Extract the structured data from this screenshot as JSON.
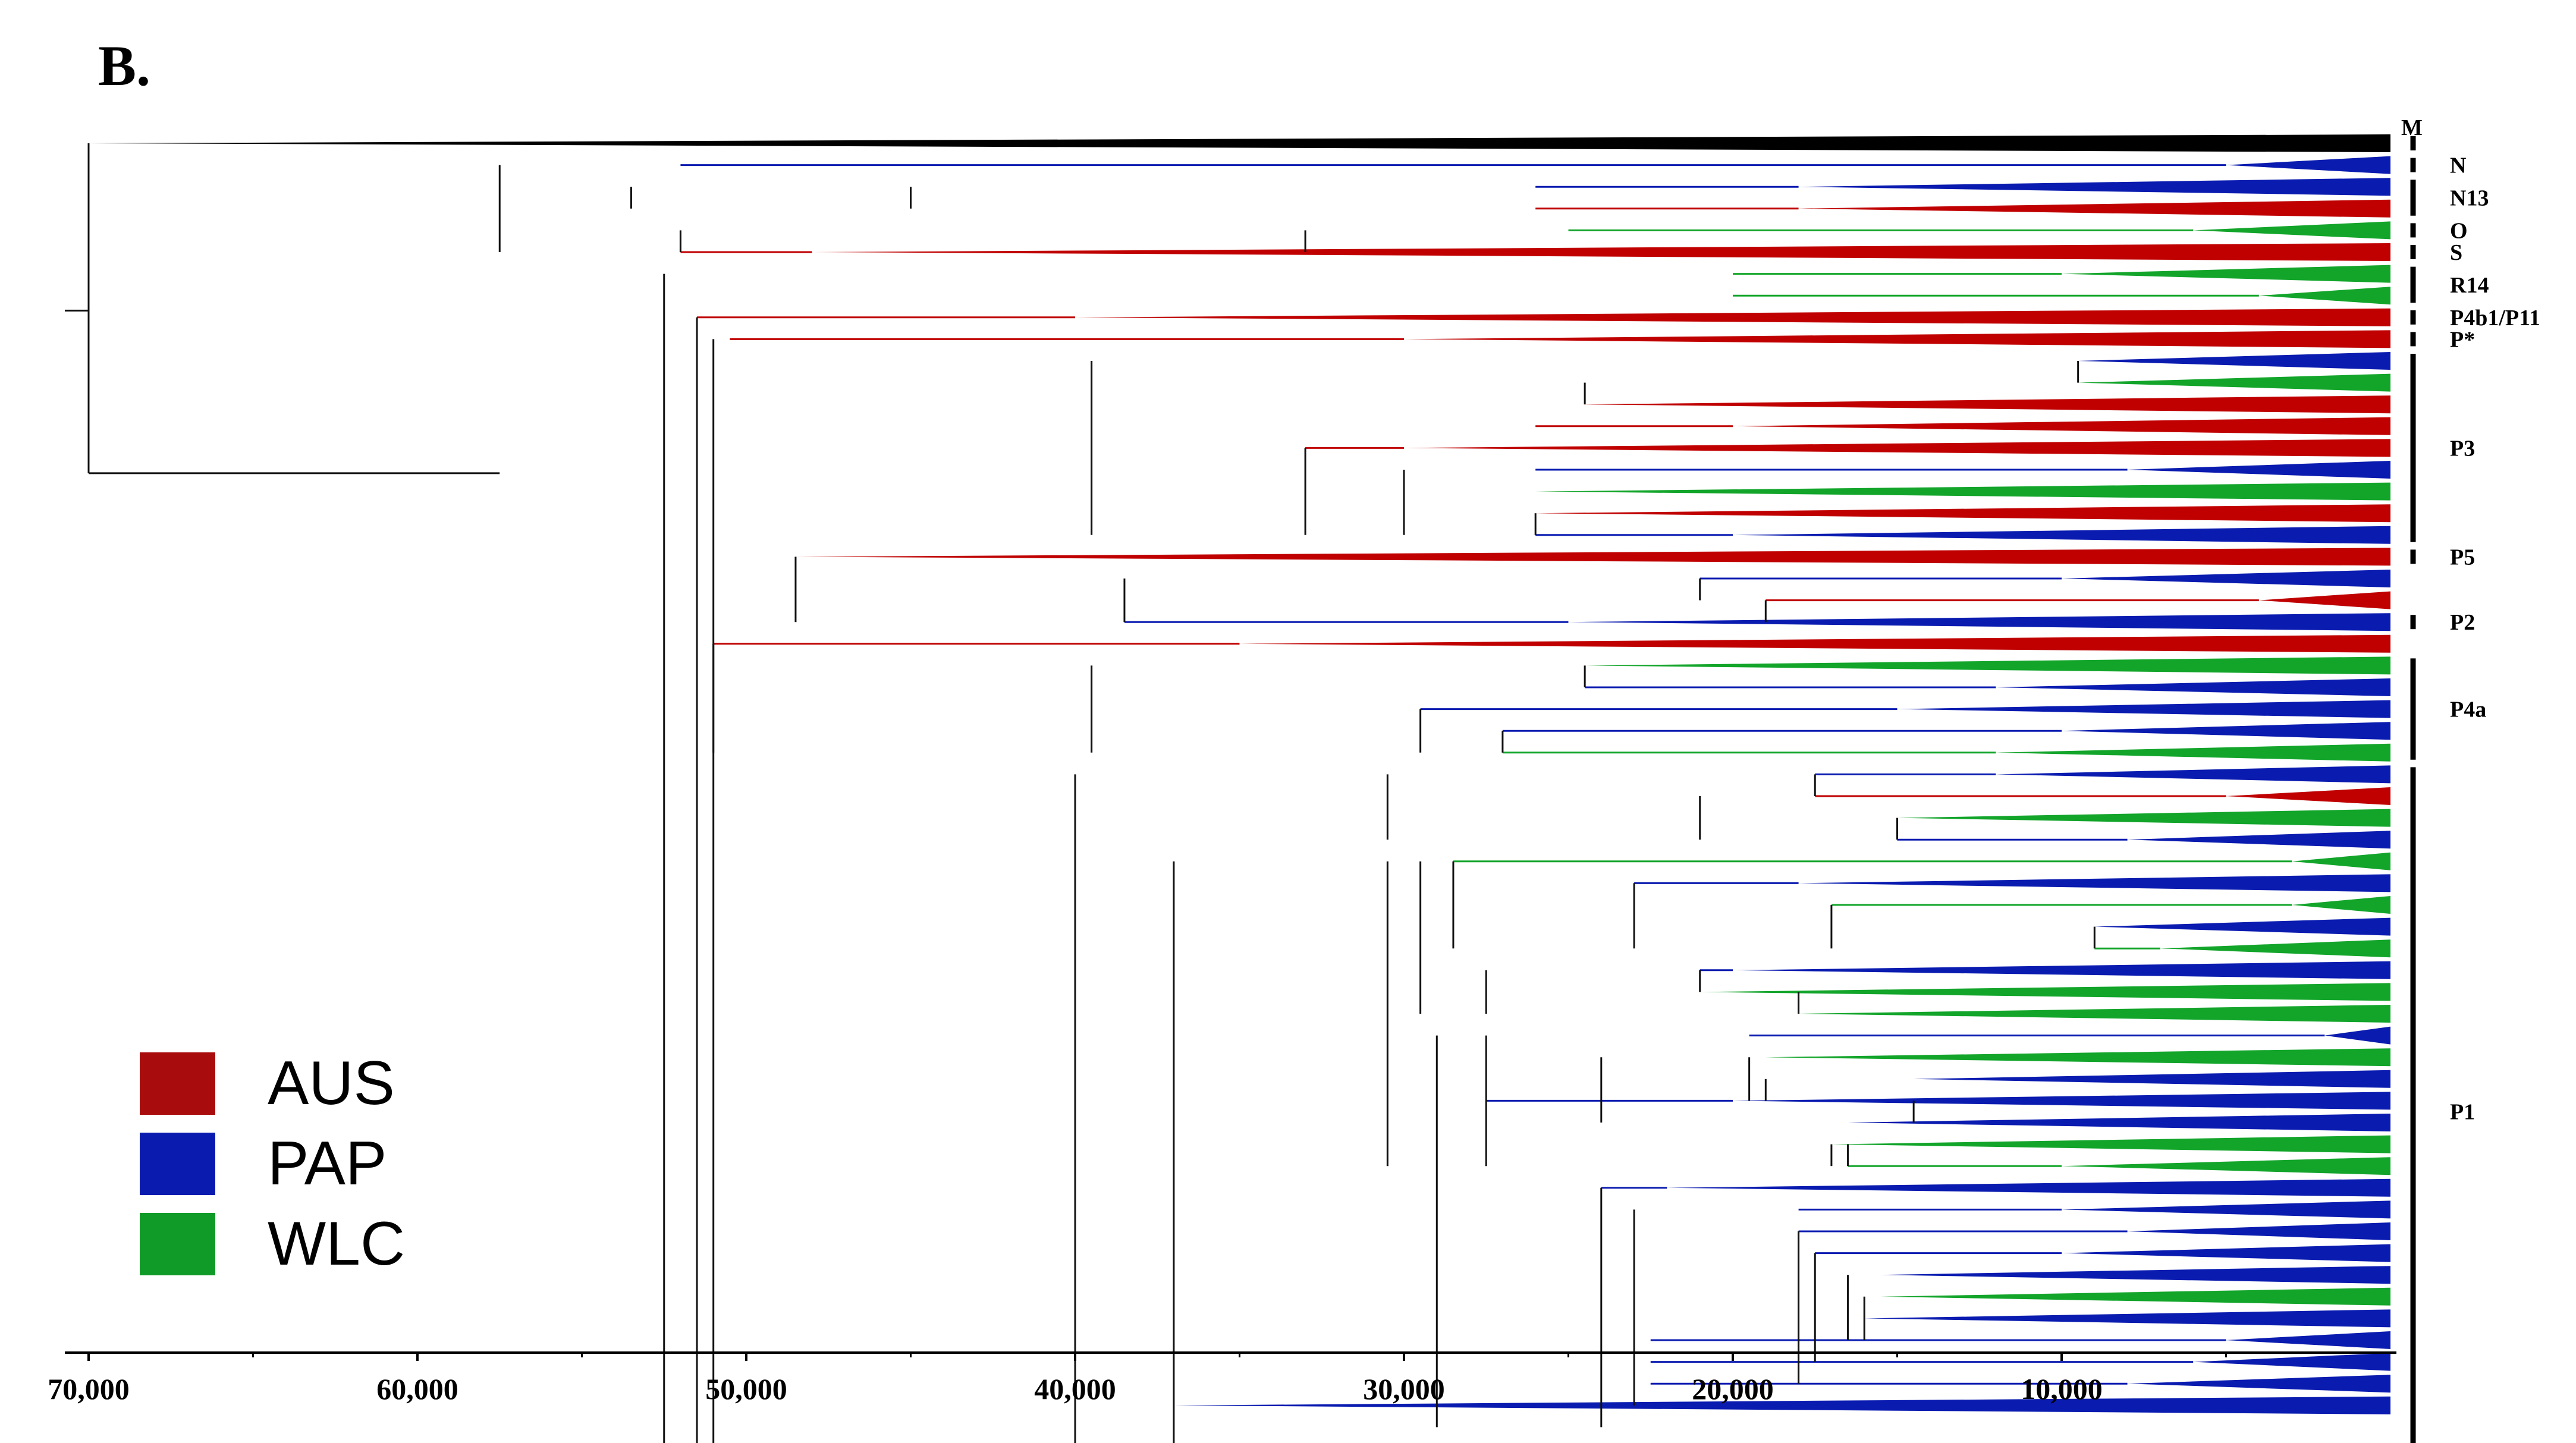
{
  "figure": {
    "panel_label": "B.",
    "colors": {
      "AUS": "#C00000",
      "PAP": "#0A1BB0",
      "WLC": "#12A52A",
      "outgroup": "#000000",
      "internal": "#111111",
      "axis": "#000000"
    },
    "legend": [
      {
        "key": "AUS",
        "label": "AUS",
        "color": "#A80C0C"
      },
      {
        "key": "PAP",
        "label": "PAP",
        "color": "#0A1BB0"
      },
      {
        "key": "WLC",
        "label": "WLC",
        "color": "#109B28"
      }
    ],
    "axis": {
      "unit": "years before present",
      "min": 0,
      "max": 70000,
      "ticks": [
        {
          "value": 70000,
          "label": "70,000"
        },
        {
          "value": 60000,
          "label": "60,000"
        },
        {
          "value": 50000,
          "label": "50,000"
        },
        {
          "value": 40000,
          "label": "40,000"
        },
        {
          "value": 30000,
          "label": "30,000"
        },
        {
          "value": 20000,
          "label": "20,000"
        },
        {
          "value": 10000,
          "label": "10,000"
        }
      ]
    },
    "clades": [
      {
        "label": "M",
        "from": 0,
        "to": 0
      },
      {
        "label": "N",
        "from": 1,
        "to": 1
      },
      {
        "label": "N13",
        "from": 2,
        "to": 3
      },
      {
        "label": "O",
        "from": 4,
        "to": 4
      },
      {
        "label": "S",
        "from": 5,
        "to": 5
      },
      {
        "label": "R14",
        "from": 6,
        "to": 7
      },
      {
        "label": "P4b1/P11",
        "from": 8,
        "to": 8
      },
      {
        "label": "P*",
        "from": 9,
        "to": 9
      },
      {
        "label": "P3",
        "from": 10,
        "to": 18
      },
      {
        "label": "P5",
        "from": 19,
        "to": 19
      },
      {
        "label": "P2",
        "from": 22,
        "to": 22
      },
      {
        "label": "P4a",
        "from": 24,
        "to": 28
      },
      {
        "label": "P1",
        "from": 29,
        "to": 60
      }
    ]
  },
  "chart_data": {
    "type": "dendrogram",
    "title": "B.",
    "xlabel": "",
    "ylabel": "",
    "x_axis_reversed": true,
    "xlim": [
      70000,
      0
    ],
    "ticks": [
      70000,
      60000,
      50000,
      40000,
      30000,
      20000,
      10000
    ],
    "tip_time": 0,
    "tips": [
      {
        "group": "outgroup",
        "clade": "M",
        "stem_start": 70000,
        "tri_start": 70000
      },
      {
        "group": "PAP",
        "clade": "N",
        "stem_start": 52000,
        "tri_start": 5000
      },
      {
        "group": "PAP",
        "clade": "N13",
        "stem_start": 26000,
        "tri_start": 18000
      },
      {
        "group": "AUS",
        "clade": "N13",
        "stem_start": 26000,
        "tri_start": 18000
      },
      {
        "group": "WLC",
        "clade": "O",
        "stem_start": 25000,
        "tri_start": 6000
      },
      {
        "group": "AUS",
        "clade": "S",
        "stem_start": 52000,
        "tri_start": 48000
      },
      {
        "group": "WLC",
        "clade": "R14",
        "stem_start": 20000,
        "tri_start": 10000
      },
      {
        "group": "WLC",
        "clade": "R14",
        "stem_start": 20000,
        "tri_start": 4000
      },
      {
        "group": "AUS",
        "clade": "P4b1/P11",
        "stem_start": 51500,
        "tri_start": 40000
      },
      {
        "group": "AUS",
        "clade": "P*",
        "stem_start": 50500,
        "tri_start": 30000
      },
      {
        "group": "PAP",
        "clade": "P3",
        "stem_start": 9500,
        "tri_start": 9500
      },
      {
        "group": "WLC",
        "clade": "P3",
        "stem_start": 9500,
        "tri_start": 9500
      },
      {
        "group": "AUS",
        "clade": "P3",
        "stem_start": 24500,
        "tri_start": 24500
      },
      {
        "group": "AUS",
        "clade": "P3",
        "stem_start": 26000,
        "tri_start": 20000
      },
      {
        "group": "AUS",
        "clade": "P3",
        "stem_start": 33000,
        "tri_start": 30000
      },
      {
        "group": "PAP",
        "clade": "P3",
        "stem_start": 26000,
        "tri_start": 8000
      },
      {
        "group": "WLC",
        "clade": "P3",
        "stem_start": 26000,
        "tri_start": 26000
      },
      {
        "group": "AUS",
        "clade": "P3",
        "stem_start": 26000,
        "tri_start": 26000
      },
      {
        "group": "PAP",
        "clade": "P3",
        "stem_start": 26000,
        "tri_start": 20000
      },
      {
        "group": "AUS",
        "clade": "P5",
        "stem_start": 48500,
        "tri_start": 48500
      },
      {
        "group": "PAP",
        "clade": "P5",
        "stem_start": 21000,
        "tri_start": 10000
      },
      {
        "group": "AUS",
        "clade": "P5",
        "stem_start": 19000,
        "tri_start": 4000
      },
      {
        "group": "PAP",
        "clade": "P2",
        "stem_start": 38500,
        "tri_start": 25000
      },
      {
        "group": "AUS",
        "clade": "P2",
        "stem_start": 51000,
        "tri_start": 35000
      },
      {
        "group": "WLC",
        "clade": "P4a",
        "stem_start": 24500,
        "tri_start": 24500
      },
      {
        "group": "PAP",
        "clade": "P4a",
        "stem_start": 24500,
        "tri_start": 12000
      },
      {
        "group": "PAP",
        "clade": "P4a",
        "stem_start": 29500,
        "tri_start": 15000
      },
      {
        "group": "PAP",
        "clade": "P4a",
        "stem_start": 27000,
        "tri_start": 10000
      },
      {
        "group": "WLC",
        "clade": "P4a",
        "stem_start": 27000,
        "tri_start": 12000
      },
      {
        "group": "PAP",
        "clade": "P1",
        "stem_start": 17500,
        "tri_start": 12000
      },
      {
        "group": "AUS",
        "clade": "P1",
        "stem_start": 17500,
        "tri_start": 5000
      },
      {
        "group": "WLC",
        "clade": "P1",
        "stem_start": 15000,
        "tri_start": 15000
      },
      {
        "group": "PAP",
        "clade": "P1",
        "stem_start": 15000,
        "tri_start": 8000
      },
      {
        "group": "WLC",
        "clade": "P1",
        "stem_start": 28500,
        "tri_start": 3000
      },
      {
        "group": "PAP",
        "clade": "P1",
        "stem_start": 23000,
        "tri_start": 18000
      },
      {
        "group": "WLC",
        "clade": "P1",
        "stem_start": 17000,
        "tri_start": 3000
      },
      {
        "group": "PAP",
        "clade": "P1",
        "stem_start": 9000,
        "tri_start": 9000
      },
      {
        "group": "WLC",
        "clade": "P1",
        "stem_start": 9000,
        "tri_start": 7000
      },
      {
        "group": "PAP",
        "clade": "P1",
        "stem_start": 21000,
        "tri_start": 20000
      },
      {
        "group": "WLC",
        "clade": "P1",
        "stem_start": 21000,
        "tri_start": 21000
      },
      {
        "group": "WLC",
        "clade": "P1",
        "stem_start": 18000,
        "tri_start": 18000
      },
      {
        "group": "PAP",
        "clade": "P1",
        "stem_start": 19500,
        "tri_start": 2000
      },
      {
        "group": "WLC",
        "clade": "P1",
        "stem_start": 19000,
        "tri_start": 19000
      },
      {
        "group": "PAP",
        "clade": "P1",
        "stem_start": 14500,
        "tri_start": 14500
      },
      {
        "group": "PAP",
        "clade": "P1",
        "stem_start": 27500,
        "tri_start": 20000
      },
      {
        "group": "PAP",
        "clade": "P1",
        "stem_start": 16500,
        "tri_start": 16500
      },
      {
        "group": "WLC",
        "clade": "P1",
        "stem_start": 17000,
        "tri_start": 17000
      },
      {
        "group": "WLC",
        "clade": "P1",
        "stem_start": 16500,
        "tri_start": 10000
      },
      {
        "group": "PAP",
        "clade": "P1",
        "stem_start": 24000,
        "tri_start": 22000
      },
      {
        "group": "PAP",
        "clade": "P1",
        "stem_start": 18000,
        "tri_start": 10000
      },
      {
        "group": "PAP",
        "clade": "P1",
        "stem_start": 18000,
        "tri_start": 8000
      },
      {
        "group": "PAP",
        "clade": "P1",
        "stem_start": 17500,
        "tri_start": 10000
      },
      {
        "group": "PAP",
        "clade": "P1",
        "stem_start": 15500,
        "tri_start": 15500
      },
      {
        "group": "WLC",
        "clade": "P1",
        "stem_start": 15500,
        "tri_start": 15500
      },
      {
        "group": "PAP",
        "clade": "P1",
        "stem_start": 16000,
        "tri_start": 16000
      },
      {
        "group": "PAP",
        "clade": "P1",
        "stem_start": 22500,
        "tri_start": 5000
      },
      {
        "group": "PAP",
        "clade": "P1",
        "stem_start": 22500,
        "tri_start": 6000
      },
      {
        "group": "PAP",
        "clade": "P1",
        "stem_start": 22500,
        "tri_start": 8000
      },
      {
        "group": "PAP",
        "clade": "P1",
        "stem_start": 37000,
        "tri_start": 37000
      }
    ],
    "internal_nodes_time": [
      70000,
      57500,
      53500,
      52000,
      45000,
      33000,
      25000,
      52500,
      51500,
      51000,
      39500,
      33000,
      30000,
      26000,
      24500,
      9500,
      48500,
      38500,
      21000,
      19000,
      51000,
      39500,
      29500,
      27000,
      24500,
      40000,
      30500,
      21000,
      17500,
      15000,
      37000,
      30500,
      29500,
      28500,
      23000,
      17000,
      9000,
      27500,
      21000,
      18000,
      29000,
      27500,
      24000,
      19500,
      19000,
      14500,
      17000,
      16500,
      24000,
      23000,
      18000,
      17500,
      16500,
      16000
    ]
  }
}
